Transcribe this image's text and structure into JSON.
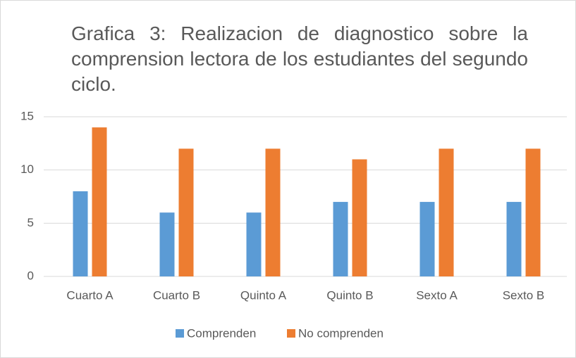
{
  "chart_data": {
    "type": "bar",
    "title": "Grafica 3: Realizacion de diagnostico sobre la comprension lectora de los estudiantes del segundo ciclo.",
    "categories": [
      "Cuarto A",
      "Cuarto B",
      "Quinto A",
      "Quinto B",
      "Sexto A",
      "Sexto B"
    ],
    "series": [
      {
        "name": "Comprenden",
        "color": "#5b9bd5",
        "values": [
          8,
          6,
          6,
          7,
          7,
          7
        ]
      },
      {
        "name": "No comprenden",
        "color": "#ed7d31",
        "values": [
          14,
          12,
          12,
          11,
          12,
          12
        ]
      }
    ],
    "ylim": [
      0,
      15
    ],
    "yticks": [
      0,
      5,
      10,
      15
    ],
    "grid": true,
    "legend": "bottom"
  }
}
